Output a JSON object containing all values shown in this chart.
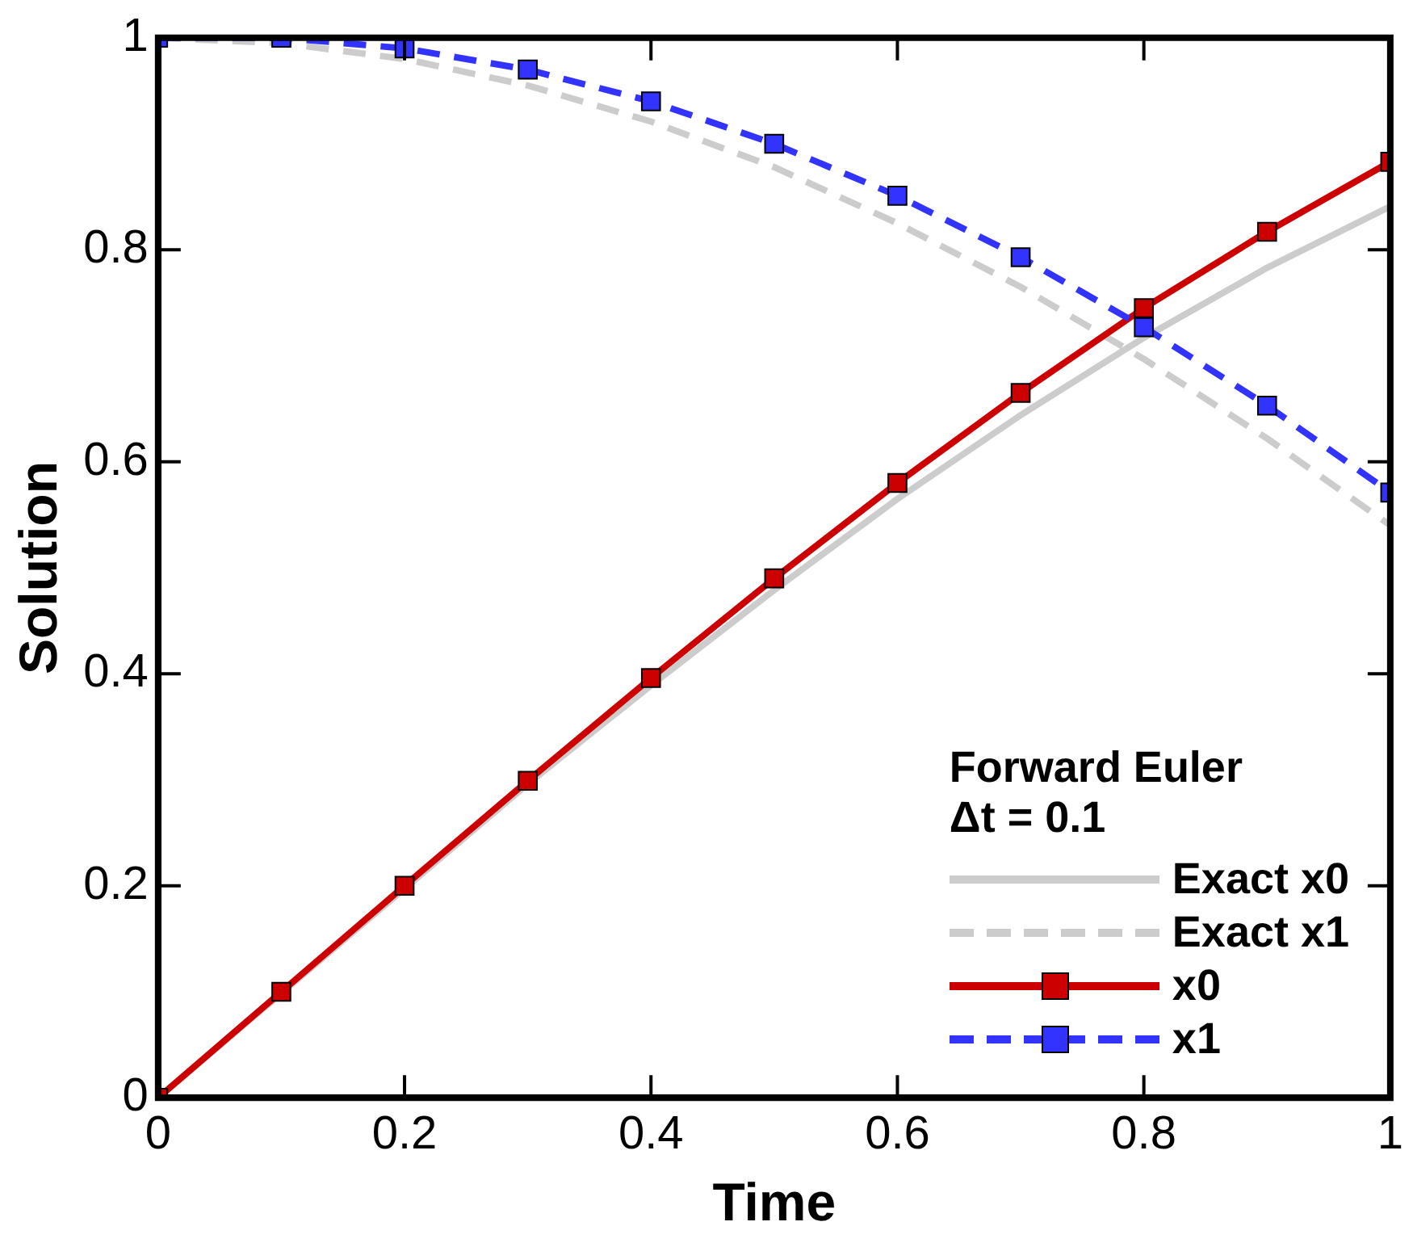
{
  "chart_data": {
    "type": "line",
    "xlabel": "Time",
    "ylabel": "Solution",
    "legend_title": "Forward Euler\nΔt = 0.1",
    "legend": "bottom right",
    "grid": false,
    "x": [
      0,
      0.1,
      0.2,
      0.3,
      0.4,
      0.5,
      0.6,
      0.7,
      0.8,
      0.9,
      1
    ],
    "xlim": [
      0,
      1
    ],
    "xticks": [
      0,
      0.2,
      0.4,
      0.6,
      0.8,
      1
    ],
    "ylim": [
      0,
      1
    ],
    "yticks": [
      0,
      0.2,
      0.4,
      0.6,
      0.8,
      1
    ],
    "series": [
      {
        "name": "Exact x0",
        "color": "#cccccc",
        "line_style": "solid",
        "marker": "none",
        "values": [
          0,
          null,
          null,
          0.296,
          0.389,
          0.479,
          0.565,
          0.644,
          0.717,
          0.783,
          0.841
        ]
      },
      {
        "name": "Exact x1",
        "color": "#cccccc",
        "line_style": "dashed",
        "marker": "none",
        "values": [
          1,
          0.995,
          0.98,
          0.955,
          0.921,
          0.878,
          0.825,
          0.765,
          0.697,
          0.622,
          0.54
        ]
      },
      {
        "name": "x0",
        "color": "#cc0000",
        "line_style": "solid",
        "marker": "square",
        "values": [
          0,
          0.1,
          0.2,
          0.299,
          0.396,
          0.49,
          0.58,
          0.665,
          0.745,
          0.817,
          0.883
        ]
      },
      {
        "name": "x1",
        "color": "#3333ff",
        "line_style": "dashed",
        "marker": "square",
        "values": [
          1,
          1,
          0.99,
          0.97,
          0.94,
          0.9,
          0.851,
          0.793,
          0.727,
          0.653,
          0.571
        ]
      }
    ]
  }
}
